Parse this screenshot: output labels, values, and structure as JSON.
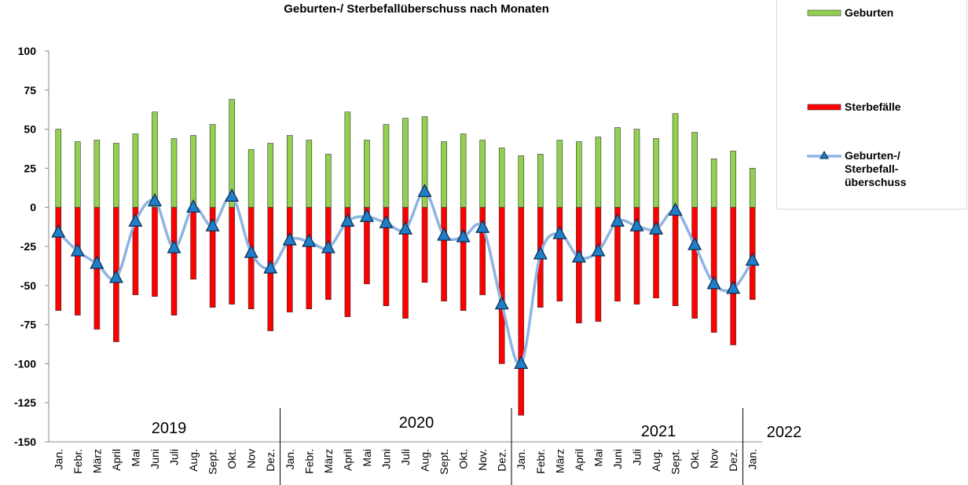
{
  "chart_data": {
    "type": "bar-line",
    "title": "Geburten-/ Sterbefallüberschuss nach Monaten",
    "categories": [
      "Jan.",
      "Febr.",
      "März",
      "April",
      "Mai",
      "Juni",
      "Juli",
      "Aug.",
      "Sept.",
      "Okt.",
      "Nov",
      "Dez.",
      "Jan.",
      "Febr.",
      "März",
      "April",
      "Mai",
      "Juni",
      "Juli",
      "Aug.",
      "Sept.",
      "Okt.",
      "Nov.",
      "Dez.",
      "Jan.",
      "Febr.",
      "März",
      "April",
      "Mai",
      "Juni",
      "Juli",
      "Aug.",
      "Sept.",
      "Okt.",
      "Nov",
      "Dez.",
      "Jan."
    ],
    "year_labels": [
      "2019",
      "2020",
      "2021",
      "2022"
    ],
    "series": [
      {
        "name": "Geburten",
        "type": "bar",
        "color": "#92d050",
        "values": [
          50,
          42,
          43,
          41,
          47,
          61,
          44,
          46,
          53,
          69,
          37,
          41,
          46,
          43,
          34,
          61,
          43,
          53,
          57,
          58,
          42,
          47,
          43,
          38,
          33,
          34,
          43,
          42,
          45,
          51,
          50,
          44,
          60,
          48,
          31,
          36,
          25
        ]
      },
      {
        "name": "Sterbefälle",
        "type": "bar",
        "color": "#ff0000",
        "values": [
          -66,
          -69,
          -78,
          -86,
          -56,
          -57,
          -69,
          -46,
          -64,
          -62,
          -65,
          -79,
          -67,
          -65,
          -59,
          -70,
          -49,
          -63,
          -71,
          -48,
          -60,
          -66,
          -56,
          -100,
          -133,
          -64,
          -60,
          -74,
          -73,
          -60,
          -62,
          -58,
          -63,
          -71,
          -80,
          -88,
          -59
        ]
      },
      {
        "name": "Geburten-/ Sterbefall- überschuss",
        "type": "line",
        "color": "#8db4e2",
        "marker_color": "#1f7fc8",
        "values": [
          -16,
          -28,
          -36,
          -45,
          -9,
          4,
          -26,
          0,
          -12,
          7,
          -29,
          -39,
          -21,
          -22,
          -26,
          -9,
          -6,
          -10,
          -14,
          10,
          -18,
          -19,
          -13,
          -62,
          -100,
          -30,
          -17,
          -32,
          -28,
          -9,
          -12,
          -14,
          -2,
          -24,
          -49,
          -52,
          -34
        ]
      }
    ],
    "ylim": [
      -150,
      100
    ],
    "yticks": [
      -150,
      -125,
      -100,
      -75,
      -50,
      -25,
      0,
      25,
      50,
      75,
      100
    ],
    "grid": false,
    "legend": "right"
  }
}
